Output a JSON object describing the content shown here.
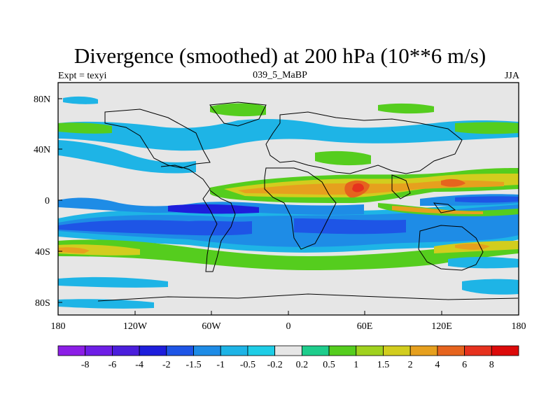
{
  "title": "Divergence (smoothed) at 200 hPa (10**6 m/s)",
  "left_label": "Expt = texyi",
  "center_label": "039_5_MaBP",
  "right_label": "JJA",
  "lat_ticks": [
    "80N",
    "40N",
    "0",
    "40S",
    "80S"
  ],
  "lon_ticks": [
    "180",
    "120W",
    "60W",
    "0",
    "60E",
    "120E",
    "180"
  ],
  "colorbar": {
    "labels": [
      "-8",
      "-6",
      "-4",
      "-2",
      "-1.5",
      "-1",
      "-0.5",
      "-0.2",
      "0.2",
      "0.5",
      "1",
      "1.5",
      "2",
      "4",
      "6",
      "8"
    ],
    "colors": [
      "#8c1ee6",
      "#6e1ee6",
      "#4b1edc",
      "#1e1edc",
      "#1e55e6",
      "#1e8ce6",
      "#1eb4e6",
      "#1ecde6",
      "#e6e6e6",
      "#1ecd8c",
      "#55cd1e",
      "#a0d21e",
      "#d2cd1e",
      "#e6a01e",
      "#e6641e",
      "#e6321e",
      "#dc0a0a"
    ]
  },
  "colors": {
    "background_field": "#e6e6e6",
    "coast": "#000000"
  }
}
